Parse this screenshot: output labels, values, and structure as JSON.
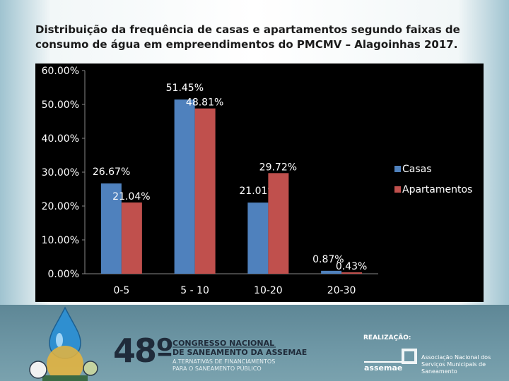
{
  "slide": {
    "title": "Distribuição da frequência de casas e apartamentos segundo faixas de consumo de água em empreendimentos do PMCMV – Alagoinhas 2017."
  },
  "chart_data": {
    "type": "bar",
    "categories": [
      "0-5",
      "5 - 10",
      "10-20",
      "20-30"
    ],
    "series": [
      {
        "name": "Casas",
        "values": [
          26.67,
          51.45,
          21.01,
          0.87
        ],
        "labels": [
          "26.67%",
          "51.45%",
          "21.01%",
          "0.87%"
        ],
        "color": "#4f81bd"
      },
      {
        "name": "Apartamentos",
        "values": [
          21.04,
          48.81,
          29.72,
          0.43
        ],
        "labels": [
          "21.04%",
          "48.81%",
          "29.72%",
          "0.43%"
        ],
        "color": "#c0504d"
      }
    ],
    "ylim": [
      0,
      60
    ],
    "yticks": [
      0,
      10,
      20,
      30,
      40,
      50,
      60
    ],
    "ytick_labels": [
      "0.00%",
      "10.00%",
      "20.00%",
      "30.00%",
      "40.00%",
      "50.00%",
      "60.00%"
    ],
    "legend": "right",
    "grid": false,
    "background": "#000000",
    "text_color": "#ffffff"
  },
  "footer": {
    "event_number": "48º",
    "event_line1": "CONGRESSO NACIONAL",
    "event_line2": "DE SANEAMENTO DA ASSEMAE",
    "event_sub1": "A.TERNATIVAS DE FINANCIAMENTOS",
    "event_sub2": "PARA O SANEAMENTO PÚBLICO",
    "realizacao": "REALIZAÇÃO:",
    "assemae": "assemae",
    "assoc_name": "Associação Nacional dos Serviços Municipais de Saneamento"
  }
}
